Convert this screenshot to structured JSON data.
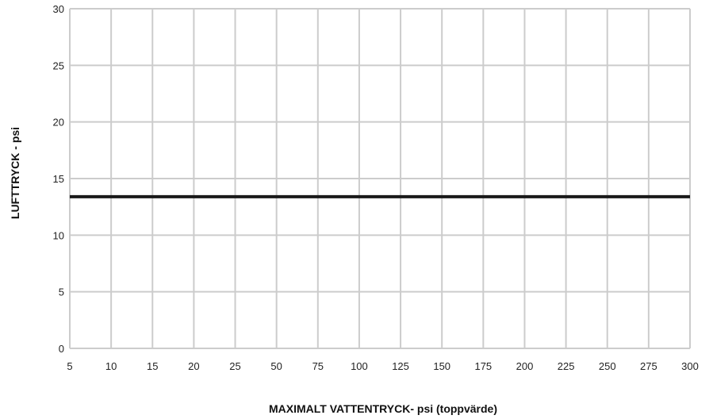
{
  "chart_data": {
    "type": "line",
    "xlabel": "MAXIMALT VATTENTRYCK- psi (toppvärde)",
    "ylabel": "LUFTTRYCK - psi",
    "x_tick_labels": [
      "5",
      "10",
      "15",
      "20",
      "25",
      "50",
      "75",
      "100",
      "125",
      "150",
      "175",
      "200",
      "225",
      "250",
      "275",
      "300"
    ],
    "y_ticks": [
      0,
      5,
      10,
      15,
      20,
      25,
      30
    ],
    "ylim": [
      0,
      30
    ],
    "x_scale": "categorical (non-uniform numeric tick labels)",
    "grid": true,
    "series": [
      {
        "x": [
          "5",
          "300"
        ],
        "y": [
          13.4,
          13.4
        ]
      }
    ],
    "colors": {
      "grid": "#cccccc",
      "line": "#1a1a1a",
      "text": "#222222"
    }
  }
}
